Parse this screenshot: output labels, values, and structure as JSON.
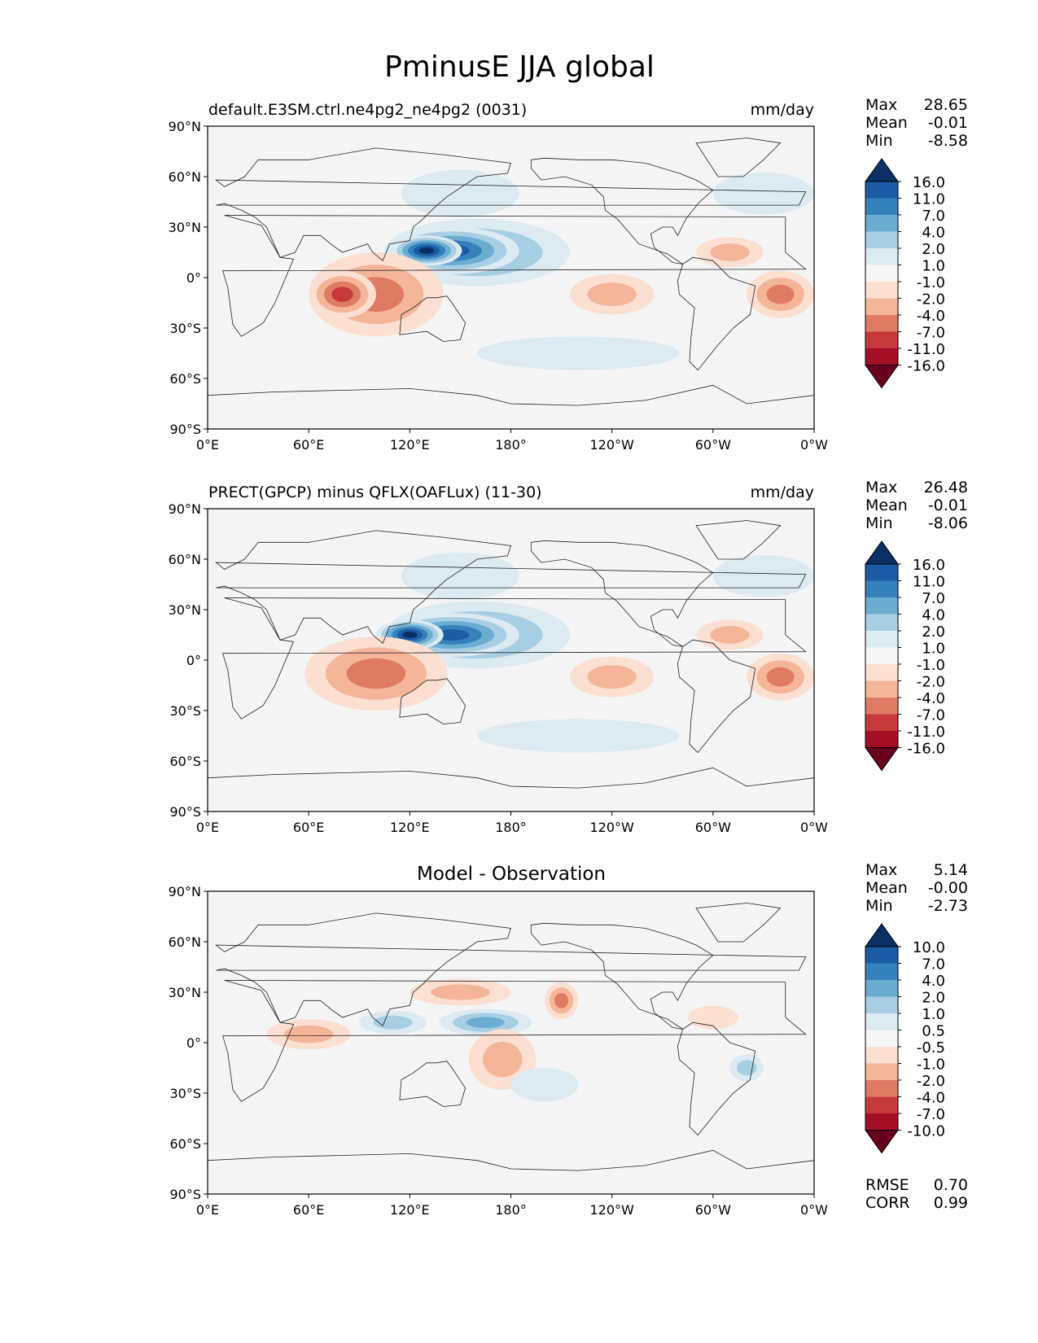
{
  "title": "PminusE JJA global",
  "colors": {
    "scale": [
      "#67001f",
      "#a50f26",
      "#c5393a",
      "#e07b63",
      "#f4b599",
      "#fbdfd1",
      "#f7f7f7",
      "#dceaf2",
      "#a8cee4",
      "#6aadd1",
      "#3481bc",
      "#1b5ca4",
      "#0a3065"
    ],
    "land": "#f5f5f5",
    "coast": "#222222"
  },
  "map_axes": {
    "lat_ticks": [
      "90°N",
      "60°N",
      "30°N",
      "0°",
      "30°S",
      "60°S",
      "90°S"
    ],
    "lon_ticks": [
      "0°E",
      "60°E",
      "120°E",
      "180°",
      "120°W",
      "60°W",
      "0°W"
    ]
  },
  "chart_data": [
    {
      "type": "heatmap",
      "panel": "test",
      "title_left": "default.E3SM.ctrl.ne4pg2_ne4pg2 (0031)",
      "title_right": "mm/day",
      "title_center": "",
      "stats": [
        {
          "label": "Max",
          "value": "28.65"
        },
        {
          "label": "Mean",
          "value": "-0.01"
        },
        {
          "label": "Min",
          "value": "-8.58"
        }
      ],
      "levels": [
        "16.0",
        "11.0",
        "7.0",
        "4.0",
        "2.0",
        "1.0",
        "-1.0",
        "-2.0",
        "-4.0",
        "-7.0",
        "-11.0",
        "-16.0"
      ],
      "xlim": [
        0,
        360
      ],
      "ylim": [
        -90,
        90
      ],
      "features": [
        {
          "lon": 160,
          "lat": 15,
          "w": 110,
          "h": 40,
          "level": 3
        },
        {
          "lon": 145,
          "lat": 16,
          "w": 80,
          "h": 28,
          "level": 5
        },
        {
          "lon": 130,
          "lat": 16,
          "w": 42,
          "h": 18,
          "level": 6
        },
        {
          "lon": 150,
          "lat": 50,
          "w": 70,
          "h": 28,
          "level": 1
        },
        {
          "lon": 100,
          "lat": -10,
          "w": 80,
          "h": 50,
          "level": -3
        },
        {
          "lon": 80,
          "lat": -10,
          "w": 40,
          "h": 28,
          "level": -4
        },
        {
          "lon": 240,
          "lat": -10,
          "w": 50,
          "h": 24,
          "level": -2
        },
        {
          "lon": 340,
          "lat": -10,
          "w": 40,
          "h": 28,
          "level": -3
        },
        {
          "lon": 310,
          "lat": 15,
          "w": 40,
          "h": 18,
          "level": -2
        },
        {
          "lon": 220,
          "lat": -45,
          "w": 120,
          "h": 20,
          "level": 1
        },
        {
          "lon": 330,
          "lat": 50,
          "w": 60,
          "h": 25,
          "level": 1
        }
      ]
    },
    {
      "type": "heatmap",
      "panel": "reference",
      "title_left": "PRECT(GPCP) minus QFLX(OAFLux) (11-30)",
      "title_right": "mm/day",
      "title_center": "",
      "stats": [
        {
          "label": "Max",
          "value": "26.48"
        },
        {
          "label": "Mean",
          "value": "-0.01"
        },
        {
          "label": "Min",
          "value": "-8.06"
        }
      ],
      "levels": [
        "16.0",
        "11.0",
        "7.0",
        "4.0",
        "2.0",
        "1.0",
        "-1.0",
        "-2.0",
        "-4.0",
        "-7.0",
        "-11.0",
        "-16.0"
      ],
      "xlim": [
        0,
        360
      ],
      "ylim": [
        -90,
        90
      ],
      "features": [
        {
          "lon": 160,
          "lat": 15,
          "w": 110,
          "h": 40,
          "level": 3
        },
        {
          "lon": 145,
          "lat": 15,
          "w": 80,
          "h": 26,
          "level": 5
        },
        {
          "lon": 120,
          "lat": 15,
          "w": 40,
          "h": 18,
          "level": 6
        },
        {
          "lon": 150,
          "lat": 50,
          "w": 70,
          "h": 28,
          "level": 1
        },
        {
          "lon": 100,
          "lat": -8,
          "w": 85,
          "h": 44,
          "level": -3
        },
        {
          "lon": 240,
          "lat": -10,
          "w": 50,
          "h": 24,
          "level": -2
        },
        {
          "lon": 340,
          "lat": -10,
          "w": 40,
          "h": 28,
          "level": -3
        },
        {
          "lon": 310,
          "lat": 15,
          "w": 40,
          "h": 18,
          "level": -2
        },
        {
          "lon": 220,
          "lat": -45,
          "w": 120,
          "h": 20,
          "level": 1
        },
        {
          "lon": 330,
          "lat": 50,
          "w": 60,
          "h": 25,
          "level": 1
        }
      ]
    },
    {
      "type": "heatmap",
      "panel": "difference",
      "title_left": "",
      "title_right": "",
      "title_center": "Model - Observation",
      "stats": [
        {
          "label": "Max",
          "value": "5.14"
        },
        {
          "label": "Mean",
          "value": "-0.00"
        },
        {
          "label": "Min",
          "value": "-2.73"
        }
      ],
      "levels": [
        "10.0",
        "7.0",
        "4.0",
        "2.0",
        "1.0",
        "0.5",
        "-0.5",
        "-1.0",
        "-2.0",
        "-4.0",
        "-7.0",
        "-10.0"
      ],
      "xlim": [
        0,
        360
      ],
      "ylim": [
        -90,
        90
      ],
      "features": [
        {
          "lon": 165,
          "lat": 12,
          "w": 55,
          "h": 16,
          "level": 3
        },
        {
          "lon": 110,
          "lat": 12,
          "w": 40,
          "h": 14,
          "level": 2
        },
        {
          "lon": 150,
          "lat": 30,
          "w": 60,
          "h": 16,
          "level": -2
        },
        {
          "lon": 210,
          "lat": 25,
          "w": 20,
          "h": 22,
          "level": -3
        },
        {
          "lon": 60,
          "lat": 5,
          "w": 50,
          "h": 18,
          "level": -2
        },
        {
          "lon": 175,
          "lat": -10,
          "w": 40,
          "h": 36,
          "level": -2
        },
        {
          "lon": 320,
          "lat": -15,
          "w": 20,
          "h": 16,
          "level": 2
        },
        {
          "lon": 300,
          "lat": 15,
          "w": 30,
          "h": 14,
          "level": -1
        },
        {
          "lon": 200,
          "lat": -25,
          "w": 40,
          "h": 20,
          "level": 1
        }
      ],
      "metrics": [
        {
          "label": "RMSE",
          "value": "0.70"
        },
        {
          "label": "CORR",
          "value": "0.99"
        }
      ]
    }
  ]
}
